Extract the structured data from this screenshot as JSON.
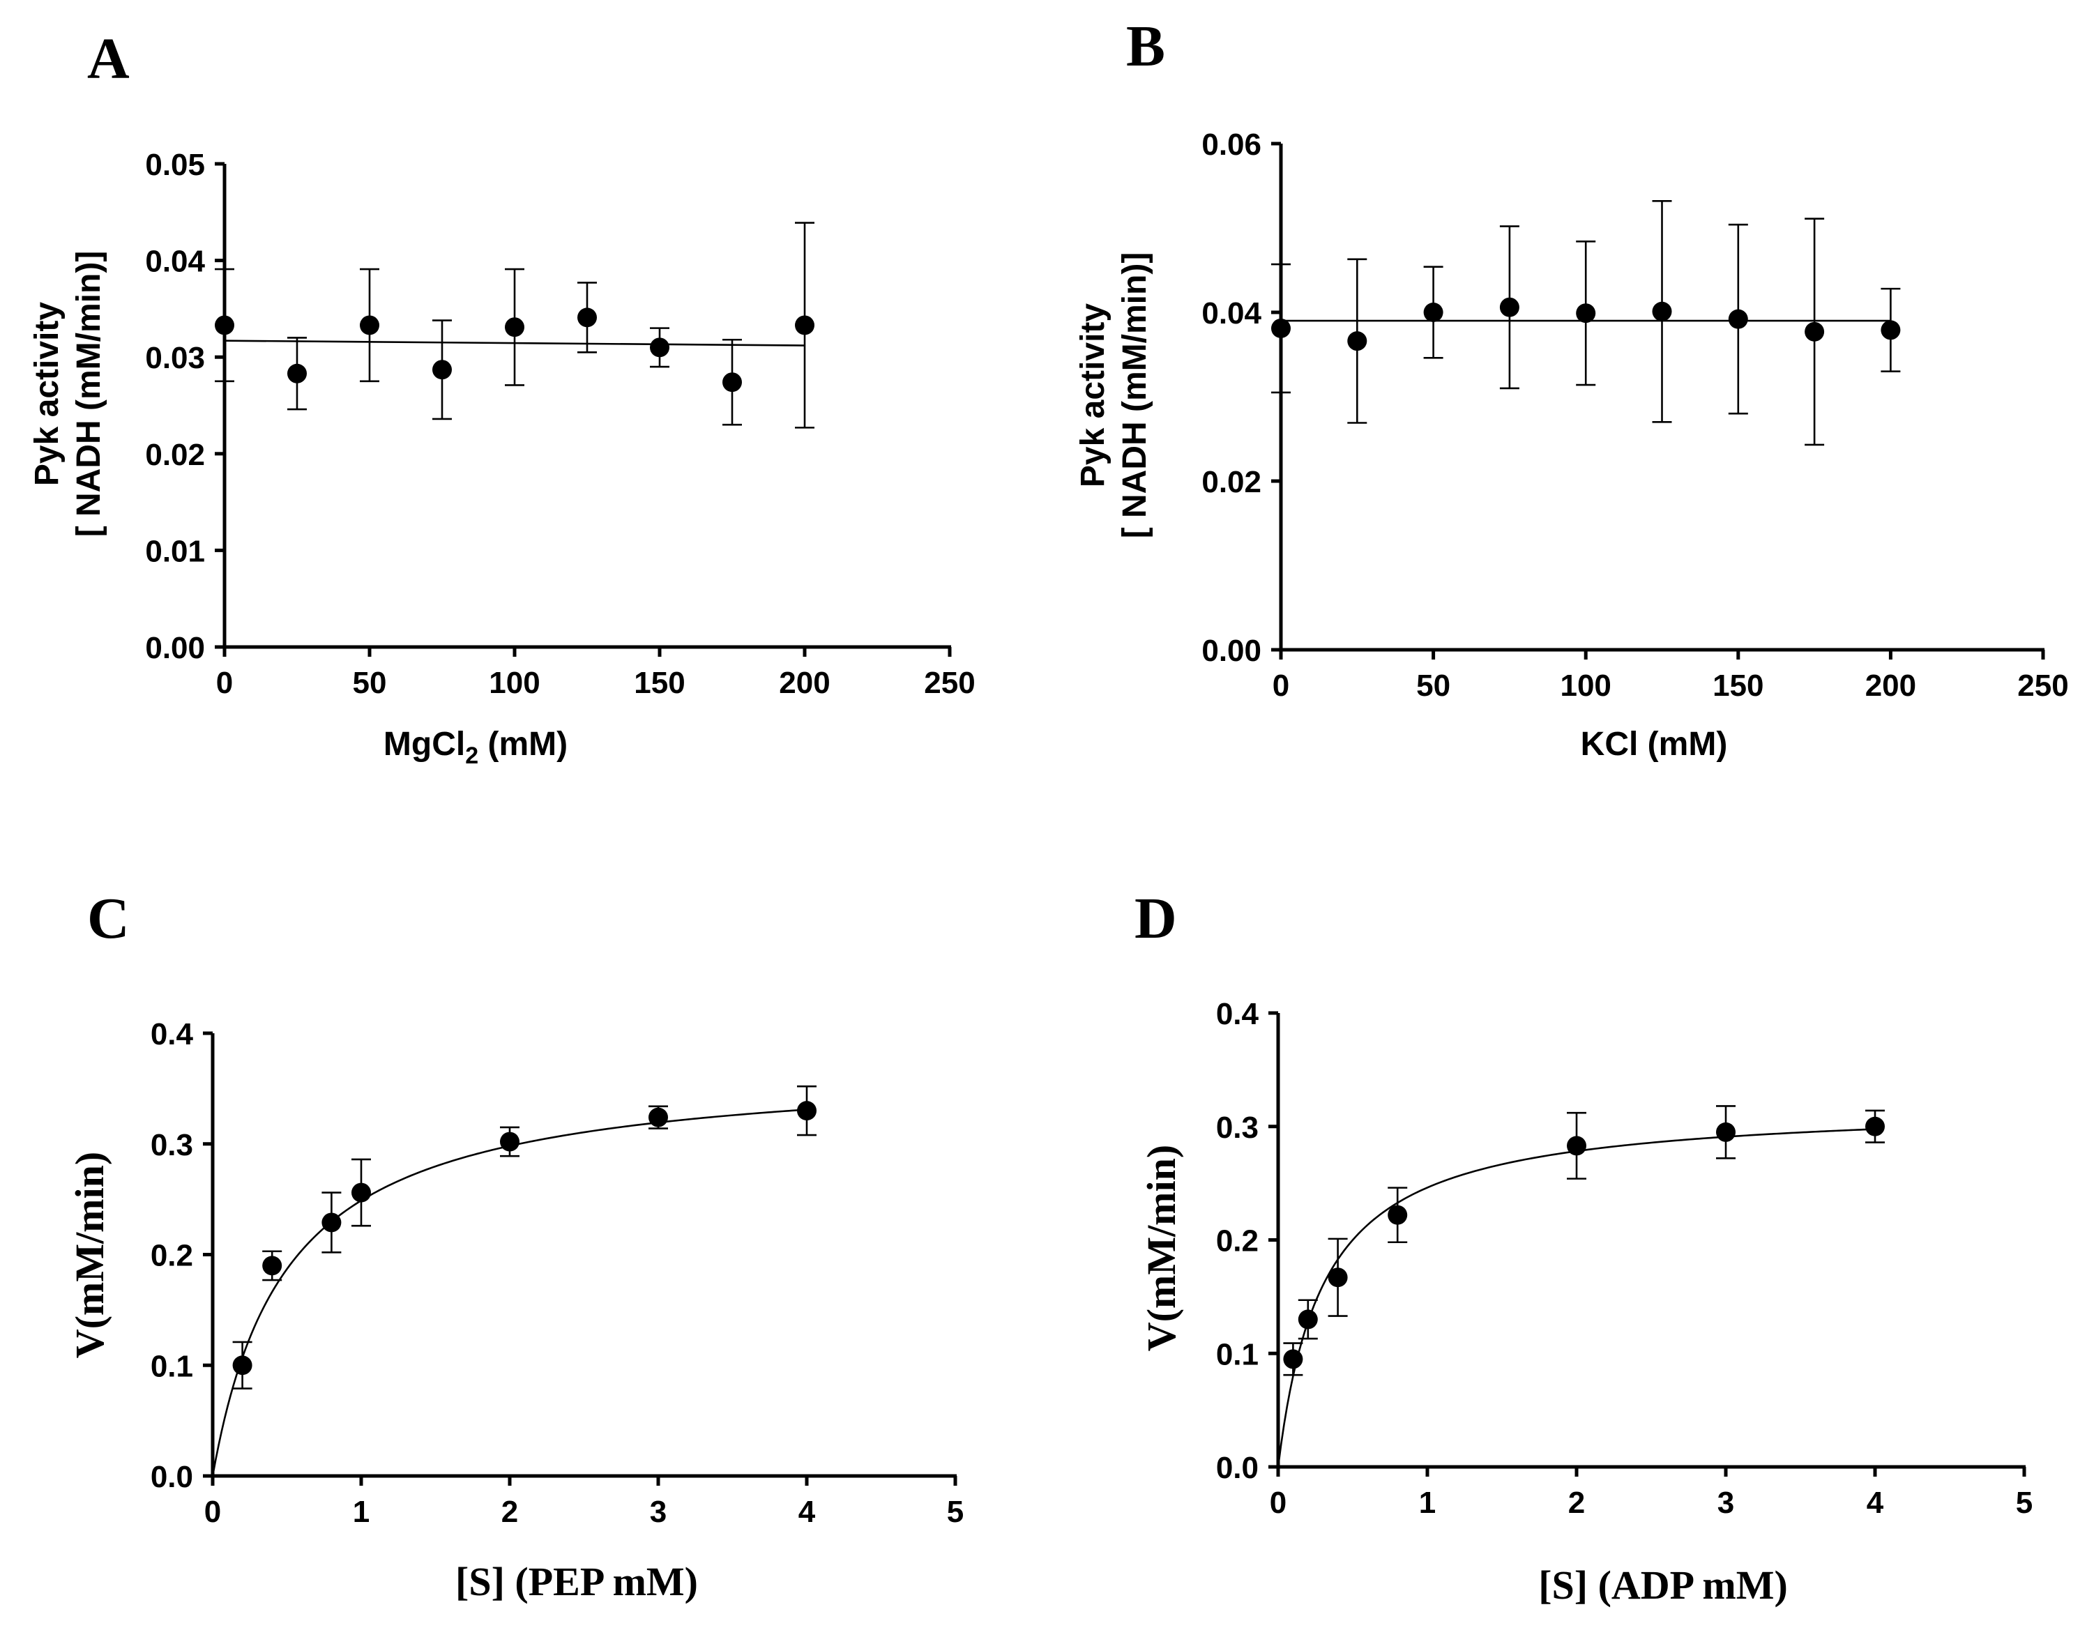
{
  "chart_data": [
    {
      "panel": "A",
      "type": "scatter",
      "title": "",
      "xlabel": "MgCl",
      "xlabel_sub": "2",
      "xlabel_suffix": " (mM)",
      "ylabel_lines": [
        "Pyk activity",
        "[ NADH (mM/min)]"
      ],
      "xlim": [
        0,
        250
      ],
      "ylim": [
        0,
        0.05
      ],
      "xticks": [
        0,
        50,
        100,
        150,
        200,
        250
      ],
      "xtick_labels": [
        "0",
        "50",
        "100",
        "150",
        "200",
        "250"
      ],
      "yticks": [
        0,
        0.01,
        0.02,
        0.03,
        0.04,
        0.05
      ],
      "ytick_labels": [
        "0.00",
        "0.01",
        "0.02",
        "0.03",
        "0.04",
        "0.05"
      ],
      "x": [
        0,
        25,
        50,
        75,
        100,
        125,
        150,
        175,
        200
      ],
      "y": [
        0.0333,
        0.0283,
        0.0333,
        0.0287,
        0.0331,
        0.0341,
        0.031,
        0.0274,
        0.0333
      ],
      "yerr": [
        0.0058,
        0.0037,
        0.0058,
        0.0051,
        0.006,
        0.0036,
        0.002,
        0.0044,
        0.0106
      ],
      "fit": {
        "kind": "linear",
        "x_range": [
          0,
          200
        ],
        "y_start": 0.0317,
        "y_end": 0.0312
      }
    },
    {
      "panel": "B",
      "type": "scatter",
      "title": "",
      "xlabel": "KCl (mM)",
      "ylabel_lines": [
        "Pyk activity",
        "[ NADH (mM/min)]"
      ],
      "xlim": [
        0,
        250
      ],
      "ylim": [
        0,
        0.06
      ],
      "xticks": [
        0,
        50,
        100,
        150,
        200,
        250
      ],
      "xtick_labels": [
        "0",
        "50",
        "100",
        "150",
        "200",
        "250"
      ],
      "yticks": [
        0,
        0.02,
        0.04,
        0.06
      ],
      "ytick_labels": [
        "0.00",
        "0.02",
        "0.04",
        "0.06"
      ],
      "x": [
        0,
        25,
        50,
        75,
        100,
        125,
        150,
        175,
        200
      ],
      "y": [
        0.0381,
        0.0366,
        0.04,
        0.0406,
        0.0399,
        0.0401,
        0.0392,
        0.0377,
        0.0379
      ],
      "yerr": [
        0.0076,
        0.0097,
        0.0054,
        0.0096,
        0.0085,
        0.0131,
        0.0112,
        0.0134,
        0.0049
      ],
      "fit": {
        "kind": "linear",
        "x_range": [
          0,
          200
        ],
        "y_start": 0.039,
        "y_end": 0.039
      }
    },
    {
      "panel": "C",
      "type": "scatter",
      "title": "",
      "xlabel": "[S] (PEP mM)",
      "ylabel_lines": [
        "V(mM/min)"
      ],
      "xlim": [
        0,
        5
      ],
      "ylim": [
        0,
        0.4
      ],
      "xticks": [
        0,
        1,
        2,
        3,
        4,
        5
      ],
      "xtick_labels": [
        "0",
        "1",
        "2",
        "3",
        "4",
        "5"
      ],
      "yticks": [
        0,
        0.1,
        0.2,
        0.3,
        0.4
      ],
      "ytick_labels": [
        "0.0",
        "0.1",
        "0.2",
        "0.3",
        "0.4"
      ],
      "x": [
        0.2,
        0.4,
        0.8,
        1.0,
        2.0,
        3.0,
        4.0
      ],
      "y": [
        0.1,
        0.19,
        0.229,
        0.256,
        0.302,
        0.324,
        0.33
      ],
      "yerr": [
        0.021,
        0.013,
        0.027,
        0.03,
        0.013,
        0.01,
        0.022
      ],
      "fit": {
        "kind": "michaelis-menten",
        "x_range": [
          0,
          4
        ],
        "vmax": 0.372,
        "km": 0.495
      }
    },
    {
      "panel": "D",
      "type": "scatter",
      "title": "",
      "xlabel": "[S] (ADP mM)",
      "ylabel_lines": [
        "V(mM/min)"
      ],
      "xlim": [
        0,
        5
      ],
      "ylim": [
        0,
        0.4
      ],
      "xticks": [
        0,
        1,
        2,
        3,
        4,
        5
      ],
      "xtick_labels": [
        "0",
        "1",
        "2",
        "3",
        "4",
        "5"
      ],
      "yticks": [
        0,
        0.1,
        0.2,
        0.3,
        0.4
      ],
      "ytick_labels": [
        "0.0",
        "0.1",
        "0.2",
        "0.3",
        "0.4"
      ],
      "x": [
        0.1,
        0.2,
        0.4,
        0.8,
        2.0,
        3.0,
        4.0
      ],
      "y": [
        0.095,
        0.13,
        0.167,
        0.222,
        0.283,
        0.295,
        0.3
      ],
      "yerr": [
        0.014,
        0.017,
        0.034,
        0.024,
        0.029,
        0.023,
        0.014
      ],
      "fit": {
        "kind": "michaelis-menten",
        "x_range": [
          0,
          4
        ],
        "vmax": 0.32,
        "km": 0.3
      }
    }
  ]
}
